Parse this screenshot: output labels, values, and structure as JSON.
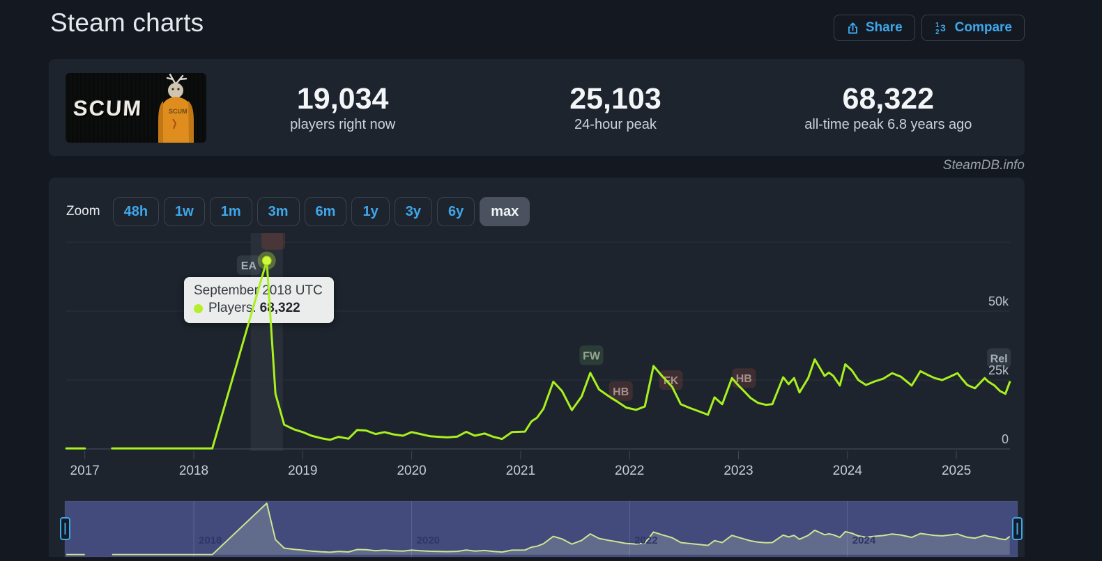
{
  "page": {
    "title": "Steam charts",
    "watermark": "SteamDB.info"
  },
  "header": {
    "share_label": "Share",
    "compare_label": "Compare"
  },
  "stats": {
    "game_title": "SCUM",
    "items": [
      {
        "value": "19,034",
        "label": "players right now"
      },
      {
        "value": "25,103",
        "label": "24-hour peak"
      },
      {
        "value": "68,322",
        "label": "all-time peak 6.8 years ago"
      }
    ]
  },
  "toolbar": {
    "zoom_label": "Zoom",
    "ranges": [
      "48h",
      "1w",
      "1m",
      "3m",
      "6m",
      "1y",
      "3y",
      "6y",
      "max"
    ],
    "selected": "max"
  },
  "tooltip": {
    "title": "September 2018 UTC",
    "series_label": "Players:",
    "value": "68,322"
  },
  "colors": {
    "accent_blue": "#3fa7ea",
    "line": "#a8f11e",
    "nav_line": "#cfe594",
    "nav_mask": "#4c5590",
    "tooltip_bg": "#ebecec",
    "panel_bg": "#1d242e",
    "page_bg": "#131821"
  },
  "chart_data": {
    "type": "line",
    "title": "",
    "xlabel": "",
    "ylabel": "Players",
    "x_ticks": [
      "2017",
      "2018",
      "2019",
      "2020",
      "2021",
      "2022",
      "2023",
      "2024",
      "2025"
    ],
    "y_axis": {
      "ticks": [
        {
          "label": "50k",
          "value": 50000
        },
        {
          "label": "25k",
          "value": 25000
        },
        {
          "label": "0",
          "value": 0
        }
      ],
      "grid_values": [
        75000,
        50000,
        25000,
        0
      ],
      "range": [
        0,
        75000
      ]
    },
    "x_range": [
      2016.82,
      2025.55
    ],
    "hover": {
      "year": 2018.67,
      "value": 68322
    },
    "series": [
      {
        "name": "Players",
        "color": "#a8f11e",
        "points": [
          [
            2016.83,
            200
          ],
          [
            2017.0,
            200
          ],
          null,
          [
            2017.25,
            200
          ],
          [
            2018.17,
            200
          ],
          [
            2018.67,
            68322
          ],
          [
            2018.75,
            20000
          ],
          [
            2018.83,
            8800
          ],
          [
            2018.92,
            7100
          ],
          [
            2019.0,
            6100
          ],
          [
            2019.08,
            4800
          ],
          [
            2019.17,
            3900
          ],
          [
            2019.25,
            3300
          ],
          [
            2019.33,
            4400
          ],
          [
            2019.42,
            3700
          ],
          [
            2019.5,
            6900
          ],
          [
            2019.58,
            6700
          ],
          [
            2019.67,
            5400
          ],
          [
            2019.75,
            6100
          ],
          [
            2019.83,
            5300
          ],
          [
            2019.92,
            4800
          ],
          [
            2020.0,
            6100
          ],
          [
            2020.08,
            5400
          ],
          [
            2020.17,
            4600
          ],
          [
            2020.25,
            4400
          ],
          [
            2020.33,
            4200
          ],
          [
            2020.42,
            4500
          ],
          [
            2020.5,
            6200
          ],
          [
            2020.58,
            4800
          ],
          [
            2020.67,
            5600
          ],
          [
            2020.75,
            4400
          ],
          [
            2020.83,
            3600
          ],
          [
            2020.92,
            6100
          ],
          [
            2021.04,
            6300
          ],
          [
            2021.1,
            10000
          ],
          [
            2021.15,
            11300
          ],
          [
            2021.21,
            14600
          ],
          [
            2021.3,
            24400
          ],
          [
            2021.38,
            21000
          ],
          [
            2021.47,
            14100
          ],
          [
            2021.56,
            19000
          ],
          [
            2021.64,
            27600
          ],
          [
            2021.72,
            21600
          ],
          [
            2021.81,
            19100
          ],
          [
            2021.89,
            17100
          ],
          [
            2021.97,
            15000
          ],
          [
            2022.06,
            14200
          ],
          [
            2022.14,
            15400
          ],
          [
            2022.22,
            30100
          ],
          [
            2022.3,
            26400
          ],
          [
            2022.39,
            22600
          ],
          [
            2022.47,
            16200
          ],
          [
            2022.55,
            14900
          ],
          [
            2022.64,
            13600
          ],
          [
            2022.72,
            12400
          ],
          [
            2022.78,
            18700
          ],
          [
            2022.85,
            16200
          ],
          [
            2022.94,
            25700
          ],
          [
            2023.0,
            23000
          ],
          [
            2023.05,
            21000
          ],
          [
            2023.11,
            18500
          ],
          [
            2023.18,
            16700
          ],
          [
            2023.25,
            16000
          ],
          [
            2023.31,
            16200
          ],
          [
            2023.41,
            26000
          ],
          [
            2023.46,
            23500
          ],
          [
            2023.51,
            25700
          ],
          [
            2023.56,
            20500
          ],
          [
            2023.64,
            25700
          ],
          [
            2023.7,
            32500
          ],
          [
            2023.76,
            28500
          ],
          [
            2023.79,
            26500
          ],
          [
            2023.83,
            27700
          ],
          [
            2023.87,
            26500
          ],
          [
            2023.93,
            23000
          ],
          [
            2023.98,
            30700
          ],
          [
            2024.04,
            28500
          ],
          [
            2024.1,
            25000
          ],
          [
            2024.17,
            23200
          ],
          [
            2024.25,
            24500
          ],
          [
            2024.33,
            25500
          ],
          [
            2024.41,
            27500
          ],
          [
            2024.49,
            26200
          ],
          [
            2024.59,
            23000
          ],
          [
            2024.67,
            28200
          ],
          [
            2024.73,
            27000
          ],
          [
            2024.8,
            25700
          ],
          [
            2024.87,
            25000
          ],
          [
            2024.94,
            26200
          ],
          [
            2025.01,
            27500
          ],
          [
            2025.05,
            25500
          ],
          [
            2025.1,
            23200
          ],
          [
            2025.17,
            22000
          ],
          [
            2025.26,
            25700
          ],
          [
            2025.29,
            24500
          ],
          [
            2025.35,
            23000
          ],
          [
            2025.4,
            21000
          ],
          [
            2025.45,
            20000
          ],
          [
            2025.49,
            24300
          ]
        ]
      }
    ],
    "events": [
      {
        "label": "EA",
        "year": 2018.505,
        "players": 66700,
        "kind": "neutral"
      },
      {
        "label": "",
        "year": 2018.73,
        "players": 75800,
        "kind": "red"
      },
      {
        "label": "FW",
        "year": 2021.65,
        "players": 34000,
        "kind": "green"
      },
      {
        "label": "HB",
        "year": 2021.92,
        "players": 21000,
        "kind": "red"
      },
      {
        "label": "FK",
        "year": 2022.38,
        "players": 25000,
        "kind": "red"
      },
      {
        "label": "HB",
        "year": 2023.05,
        "players": 25700,
        "kind": "red"
      },
      {
        "label": "Rel",
        "year": 2025.39,
        "players": 33000,
        "kind": "neutral"
      }
    ],
    "navigator": {
      "x_labels": [
        "2018",
        "2020",
        "2022",
        "2024"
      ]
    },
    "legend": "off",
    "grid": "on"
  }
}
